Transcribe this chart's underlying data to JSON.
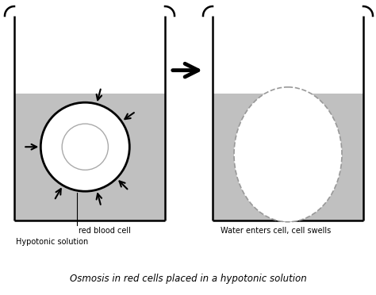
{
  "bg_color": "#ffffff",
  "solution_color": "#c0c0c0",
  "title": "Osmosis in red cells placed in a hypotonic solution",
  "label_rbc": "red blood cell",
  "label_hypo": "Hypotonic solution",
  "label_right": "Water enters cell, cell swells",
  "fig_w": 4.74,
  "fig_h": 3.72,
  "dpi": 100
}
